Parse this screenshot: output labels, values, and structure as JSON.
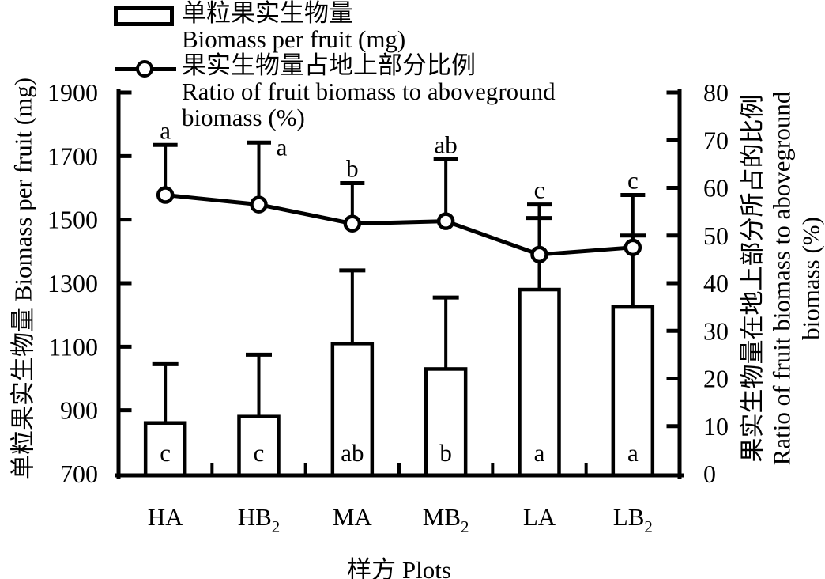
{
  "figure": {
    "background": "#ffffff",
    "foreground": "#000000"
  },
  "legend": {
    "entries": [
      {
        "swatch_icon": "open-bar-swatch",
        "lines": [
          "单粒果实生物量",
          "Biomass per fruit (mg)"
        ]
      },
      {
        "swatch_icon": "line-with-circle-marker-swatch",
        "lines": [
          "果实生物量占地上部分比例",
          "Ratio of fruit biomass to aboveground",
          "biomass (%)"
        ]
      }
    ]
  },
  "axis_titles": {
    "left_lines": [
      "单粒果实生物量 Biomass per fruit (mg)"
    ],
    "right_lines": [
      "果实生物量在地上部分所占的比例",
      "Ratio of fruit biomass to aboveground",
      "biomass (%)"
    ],
    "x_title": "样方 Plots"
  },
  "chart_data": {
    "type": "combo-bar-line",
    "categories": [
      "HA",
      "HB2",
      "MA",
      "MB2",
      "LA",
      "LB2"
    ],
    "category_display": [
      {
        "base": "HA",
        "sub": ""
      },
      {
        "base": "HB",
        "sub": "2"
      },
      {
        "base": "MA",
        "sub": ""
      },
      {
        "base": "MB",
        "sub": "2"
      },
      {
        "base": "LA",
        "sub": ""
      },
      {
        "base": "LB",
        "sub": "2"
      }
    ],
    "xlabel": "样方 Plots",
    "grid": false,
    "legend_position": "top-left",
    "left_axis": {
      "label": "单粒果实生物量 Biomass per fruit (mg)",
      "min": 700,
      "max": 1900,
      "tick_step": 200,
      "ticks": [
        700,
        900,
        1100,
        1300,
        1500,
        1700,
        1900
      ]
    },
    "right_axis": {
      "label": "果实生物量在地上部分所占的比例 Ratio of fruit biomass to aboveground biomass (%)",
      "min": 0,
      "max": 80,
      "tick_step": 10,
      "ticks": [
        0,
        10,
        20,
        30,
        40,
        50,
        60,
        70,
        80
      ]
    },
    "series": [
      {
        "name": "单粒果实生物量 Biomass per fruit (mg)",
        "type": "bar",
        "axis": "left",
        "values": [
          860,
          880,
          1110,
          1030,
          1280,
          1225
        ],
        "error_caps": [
          1045,
          1075,
          1340,
          1255,
          1505,
          1450
        ],
        "sig_letters": [
          "c",
          "c",
          "ab",
          "b",
          "a",
          "a"
        ]
      },
      {
        "name": "果实生物量占地上部分比例 Ratio of fruit biomass to aboveground biomass (%)",
        "type": "line",
        "axis": "right",
        "values": [
          58.5,
          56.5,
          52.5,
          53,
          46,
          47.5
        ],
        "error_caps": [
          69,
          69.5,
          61,
          66,
          56.5,
          58.5
        ],
        "sig_letters": [
          "a",
          "a",
          "b",
          "ab",
          "c",
          "c"
        ]
      }
    ]
  }
}
